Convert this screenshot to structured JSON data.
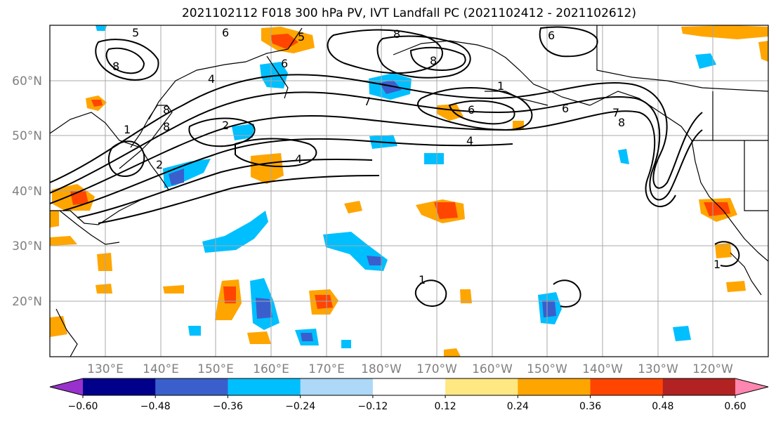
{
  "title": "2021102112 F018 300 hPa PV, IVT Landfall PC (2021102412 - 2021102612)",
  "lat_labels": [
    "60°N",
    "50°N",
    "40°N",
    "30°N",
    "20°N"
  ],
  "lon_labels": [
    "130°E",
    "140°E",
    "150°E",
    "160°E",
    "170°E",
    "180°W",
    "170°W",
    "160°W",
    "150°W",
    "140°W",
    "130°W",
    "120°W"
  ],
  "contour_labels": [
    "5",
    "6",
    "8",
    "6",
    "5",
    "8",
    "8",
    "1",
    "6",
    "6",
    "4",
    "2",
    "8",
    "7",
    "8",
    "1",
    "2",
    "4",
    "7",
    "6",
    "4",
    "8",
    "1",
    "1"
  ],
  "colorbar": {
    "tick_labels": [
      "−0.60",
      "−0.48",
      "−0.36",
      "−0.24",
      "−0.12",
      "0.12",
      "0.24",
      "0.36",
      "0.48",
      "0.60"
    ],
    "colors": [
      "#9932CC",
      "#00008B",
      "#3A5FCD",
      "#00BFFF",
      "#ADD8F7",
      "#FFFFFF",
      "#FFE882",
      "#FFA500",
      "#FF4500",
      "#B22222",
      "#FF86B0"
    ]
  }
}
